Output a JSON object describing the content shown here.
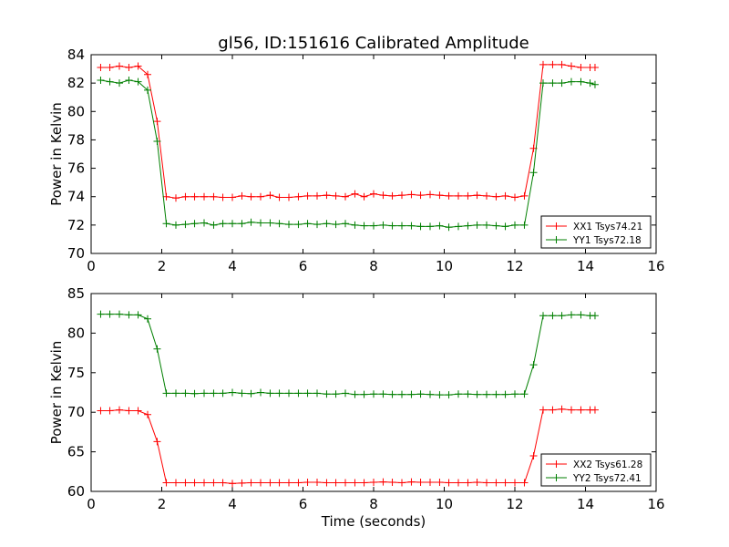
{
  "title": "gl56, ID:151616 Calibrated Amplitude",
  "chart_data": [
    {
      "type": "line",
      "title": "gl56, ID:151616 Calibrated Amplitude",
      "xlabel": "",
      "ylabel": "Power in Kelvin",
      "xlim": [
        0,
        16
      ],
      "ylim": [
        70,
        84
      ],
      "xticks": [
        0,
        2,
        4,
        6,
        8,
        10,
        12,
        14,
        16
      ],
      "yticks": [
        70,
        72,
        74,
        76,
        78,
        80,
        82,
        84
      ],
      "grid": false,
      "legend_position": "lower-right",
      "x": [
        0.27,
        0.53,
        0.8,
        1.07,
        1.33,
        1.6,
        1.87,
        2.13,
        2.4,
        2.67,
        2.93,
        3.2,
        3.47,
        3.73,
        4.0,
        4.27,
        4.53,
        4.8,
        5.07,
        5.33,
        5.6,
        5.87,
        6.13,
        6.4,
        6.67,
        6.93,
        7.2,
        7.47,
        7.73,
        8.0,
        8.27,
        8.53,
        8.8,
        9.07,
        9.33,
        9.6,
        9.87,
        10.13,
        10.4,
        10.67,
        10.93,
        11.2,
        11.47,
        11.73,
        12.0,
        12.27,
        12.53,
        12.8,
        13.07,
        13.33,
        13.6,
        13.87,
        14.13,
        14.27
      ],
      "series": [
        {
          "name": "XX1 Tsys74.21",
          "color": "#ff0000",
          "values": [
            83.1,
            83.1,
            83.2,
            83.1,
            83.2,
            82.6,
            79.3,
            74.0,
            73.9,
            74.0,
            74.0,
            74.0,
            74.0,
            73.95,
            73.95,
            74.05,
            74.0,
            74.0,
            74.1,
            73.95,
            73.95,
            74.0,
            74.05,
            74.05,
            74.1,
            74.05,
            74.0,
            74.2,
            74.0,
            74.2,
            74.1,
            74.05,
            74.1,
            74.15,
            74.1,
            74.15,
            74.1,
            74.05,
            74.05,
            74.05,
            74.1,
            74.05,
            74.0,
            74.05,
            73.95,
            74.05,
            77.4,
            83.3,
            83.3,
            83.3,
            83.2,
            83.1,
            83.1,
            83.1
          ]
        },
        {
          "name": "YY1 Tsys72.18",
          "color": "#007f00",
          "values": [
            82.2,
            82.1,
            82.0,
            82.2,
            82.1,
            81.5,
            77.9,
            72.1,
            72.0,
            72.05,
            72.1,
            72.15,
            72.0,
            72.1,
            72.1,
            72.1,
            72.2,
            72.15,
            72.15,
            72.1,
            72.05,
            72.05,
            72.1,
            72.05,
            72.1,
            72.05,
            72.1,
            72.0,
            71.95,
            71.95,
            72.0,
            71.95,
            71.95,
            71.95,
            71.9,
            71.9,
            71.95,
            71.85,
            71.9,
            71.95,
            72.0,
            72.0,
            71.95,
            71.9,
            72.0,
            72.0,
            75.7,
            82.0,
            82.0,
            82.0,
            82.1,
            82.1,
            82.0,
            81.9
          ]
        }
      ]
    },
    {
      "type": "line",
      "title": "",
      "xlabel": "Time (seconds)",
      "ylabel": "Power in Kelvin",
      "xlim": [
        0,
        16
      ],
      "ylim": [
        60,
        85
      ],
      "xticks": [
        0,
        2,
        4,
        6,
        8,
        10,
        12,
        14,
        16
      ],
      "yticks": [
        60,
        65,
        70,
        75,
        80,
        85
      ],
      "grid": false,
      "legend_position": "lower-right",
      "x": [
        0.27,
        0.53,
        0.8,
        1.07,
        1.33,
        1.6,
        1.87,
        2.13,
        2.4,
        2.67,
        2.93,
        3.2,
        3.47,
        3.73,
        4.0,
        4.27,
        4.53,
        4.8,
        5.07,
        5.33,
        5.6,
        5.87,
        6.13,
        6.4,
        6.67,
        6.93,
        7.2,
        7.47,
        7.73,
        8.0,
        8.27,
        8.53,
        8.8,
        9.07,
        9.33,
        9.6,
        9.87,
        10.13,
        10.4,
        10.67,
        10.93,
        11.2,
        11.47,
        11.73,
        12.0,
        12.27,
        12.53,
        12.8,
        13.07,
        13.33,
        13.6,
        13.87,
        14.13,
        14.27
      ],
      "series": [
        {
          "name": "XX2 Tsys61.28",
          "color": "#ff0000",
          "values": [
            70.2,
            70.2,
            70.3,
            70.2,
            70.2,
            69.7,
            66.3,
            61.1,
            61.1,
            61.1,
            61.1,
            61.1,
            61.1,
            61.1,
            61.0,
            61.05,
            61.1,
            61.1,
            61.1,
            61.1,
            61.1,
            61.1,
            61.15,
            61.15,
            61.1,
            61.1,
            61.1,
            61.1,
            61.1,
            61.15,
            61.2,
            61.15,
            61.1,
            61.2,
            61.15,
            61.15,
            61.15,
            61.1,
            61.1,
            61.1,
            61.15,
            61.1,
            61.1,
            61.1,
            61.1,
            61.1,
            64.5,
            70.3,
            70.3,
            70.4,
            70.3,
            70.3,
            70.3,
            70.3
          ]
        },
        {
          "name": "YY2 Tsys72.41",
          "color": "#007f00",
          "values": [
            82.4,
            82.4,
            82.4,
            82.3,
            82.3,
            81.8,
            78.0,
            72.4,
            72.4,
            72.4,
            72.35,
            72.4,
            72.4,
            72.4,
            72.5,
            72.4,
            72.35,
            72.5,
            72.4,
            72.4,
            72.4,
            72.4,
            72.4,
            72.4,
            72.3,
            72.3,
            72.4,
            72.25,
            72.25,
            72.3,
            72.3,
            72.25,
            72.25,
            72.25,
            72.3,
            72.25,
            72.2,
            72.2,
            72.3,
            72.3,
            72.25,
            72.25,
            72.25,
            72.25,
            72.3,
            72.3,
            76.0,
            82.2,
            82.2,
            82.2,
            82.3,
            82.3,
            82.2,
            82.2
          ]
        }
      ]
    }
  ]
}
